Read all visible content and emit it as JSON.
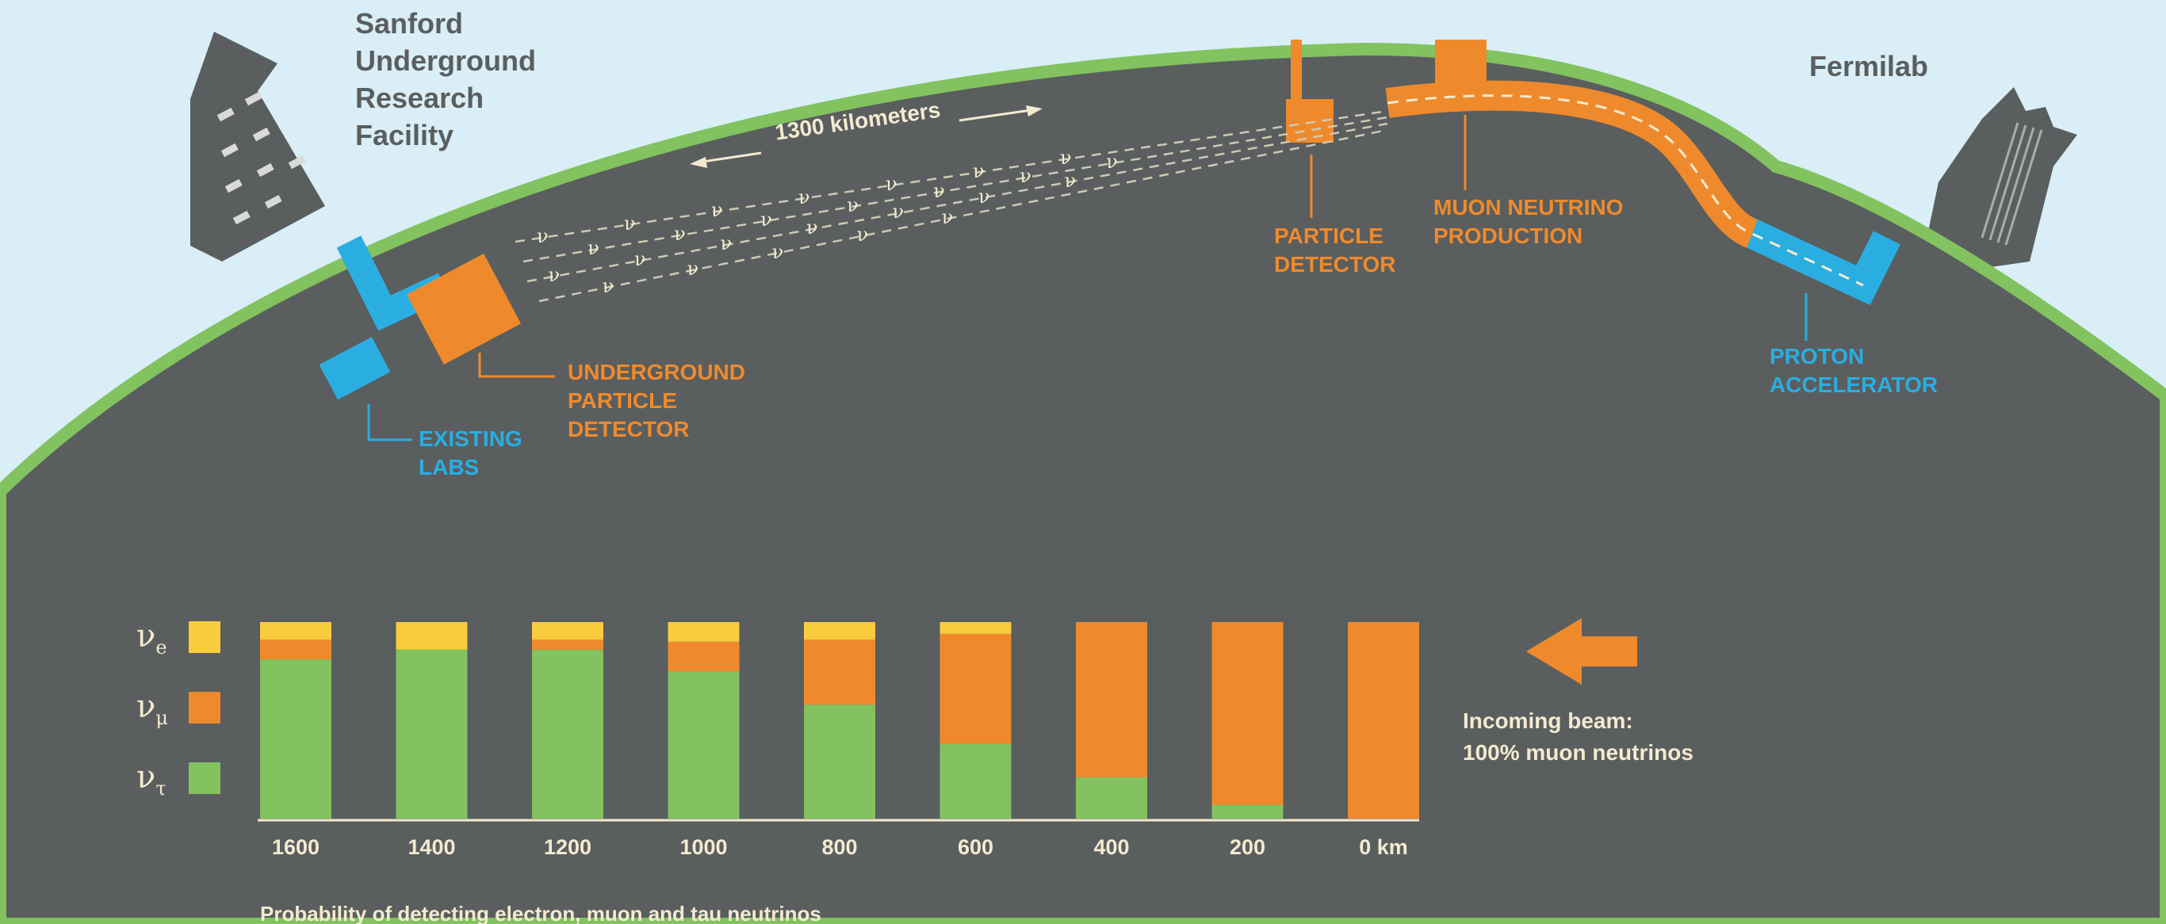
{
  "colors": {
    "sky": "#d9eef6",
    "ground": "#5a5e5e",
    "grass": "#82c25f",
    "orange": "#ef8a2c",
    "blue": "#2aaee2",
    "yellow": "#f8cc3c",
    "green": "#82c25f",
    "cream": "#f3ead0"
  },
  "sites": {
    "sanford": "Sanford\nUnderground\nResearch\nFacility",
    "fermilab": "Fermilab"
  },
  "labels": {
    "distance": "1300 kilometers",
    "particle_detector": "PARTICLE\nDETECTOR",
    "muon_production": "MUON NEUTRINO\nPRODUCTION",
    "proton_accelerator": "PROTON\nACCELERATOR",
    "underground_detector": "UNDERGROUND\nPARTICLE\nDETECTOR",
    "existing_labs": "EXISTING\nLABS",
    "beam_glyph": "ν",
    "incoming_beam": "Incoming beam:\n100% muon neutrinos",
    "caption": "Probability of detecting electron, muon and tau neutrinos"
  },
  "chart_data": {
    "type": "bar",
    "stacked": true,
    "categories": [
      "1600",
      "1400",
      "1200",
      "1000",
      "800",
      "600",
      "400",
      "200",
      "0 km"
    ],
    "ylim": [
      0,
      1
    ],
    "series": [
      {
        "name": "ν_τ",
        "symbol": "ν",
        "sub": "τ",
        "color": "#82c25f",
        "values": [
          0.81,
          0.86,
          0.86,
          0.75,
          0.58,
          0.38,
          0.21,
          0.07,
          0.0
        ]
      },
      {
        "name": "ν_μ",
        "symbol": "ν",
        "sub": "μ",
        "color": "#ef8a2c",
        "values": [
          0.1,
          0.0,
          0.05,
          0.15,
          0.33,
          0.56,
          0.79,
          0.93,
          1.0
        ]
      },
      {
        "name": "ν_e",
        "symbol": "ν",
        "sub": "e",
        "color": "#f8cc3c",
        "values": [
          0.09,
          0.14,
          0.09,
          0.1,
          0.09,
          0.06,
          0.0,
          0.0,
          0.0
        ]
      }
    ]
  }
}
